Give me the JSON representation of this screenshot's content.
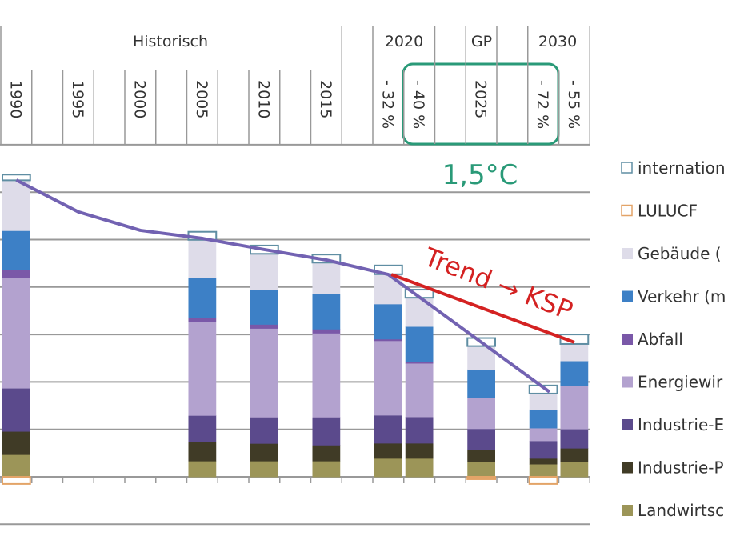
{
  "chart_data": {
    "type": "bar",
    "stacked": true,
    "title": "",
    "xlabel": "",
    "ylabel": "",
    "ylim": [
      -200,
      1400
    ],
    "grid": true,
    "legend_position": "right",
    "header_groups": [
      "Historisch",
      "2020",
      "GP",
      "2030"
    ],
    "slots": [
      "1990",
      "",
      "1995",
      "",
      "2000",
      "",
      "2005",
      "",
      "2010",
      "",
      "2015",
      "",
      "- 32 %",
      "- 40 %",
      "",
      "2025",
      "",
      "- 72 %",
      "- 55 %"
    ],
    "series": [
      {
        "name": "Landwirtsc",
        "color": "#9c9558",
        "outline": false
      },
      {
        "name": "Industrie-P",
        "color": "#403b26",
        "outline": false
      },
      {
        "name": "Industrie-E",
        "color": "#5b4a8c",
        "outline": false
      },
      {
        "name": "Energiewir",
        "color": "#b3a2cf",
        "outline": false
      },
      {
        "name": "Abfall",
        "color": "#7a58a8",
        "outline": false
      },
      {
        "name": "Verkehr (m",
        "color": "#3d80c6",
        "outline": false
      },
      {
        "name": "Gebäude (",
        "color": "#dedce9",
        "outline": false
      },
      {
        "name": "internation",
        "color": "#5f8ea3",
        "outline": true
      },
      {
        "name": "LULUCF",
        "color": "#e3a468",
        "outline": true
      }
    ],
    "legend_order": [
      "internation",
      "LULUCF",
      "Gebäude (",
      "Verkehr (m",
      "Abfall",
      "Energiewir",
      "Industrie-E",
      "Industrie-P",
      "Landwirtsc"
    ],
    "bars": [
      {
        "slot": 0,
        "values": [
          94,
          98,
          182,
          465,
          34,
          165,
          212,
          24,
          -30
        ]
      },
      {
        "slot": 6,
        "values": [
          67,
          81,
          111,
          395,
          17,
          169,
          159,
          34,
          0
        ]
      },
      {
        "slot": 8,
        "values": [
          67,
          74,
          111,
          374,
          17,
          145,
          152,
          35,
          0
        ]
      },
      {
        "slot": 10,
        "values": [
          67,
          67,
          118,
          354,
          17,
          148,
          132,
          34,
          0
        ]
      },
      {
        "slot": 12,
        "values": [
          78,
          64,
          118,
          314,
          7,
          148,
          125,
          37,
          0
        ]
      },
      {
        "slot": 13,
        "values": [
          78,
          64,
          111,
          226,
          7,
          148,
          121,
          34,
          0
        ]
      },
      {
        "slot": 15,
        "values": [
          64,
          51,
          88,
          132,
          0,
          118,
          98,
          34,
          -10
        ]
      },
      {
        "slot": 17,
        "values": [
          54,
          24,
          74,
          54,
          0,
          78,
          67,
          34,
          -30
        ]
      },
      {
        "slot": 18,
        "values": [
          64,
          57,
          81,
          182,
          0,
          105,
          71,
          40,
          0
        ]
      }
    ],
    "lines": [
      {
        "name": "path-1.5C",
        "color": "#7262b2",
        "points": [
          [
            0,
            1251
          ],
          [
            2,
            1117
          ],
          [
            4,
            1039
          ],
          [
            6,
            1005
          ],
          [
            8,
            958
          ],
          [
            10,
            914
          ],
          [
            12,
            853
          ],
          [
            17.2,
            358
          ]
        ]
      },
      {
        "name": "trend-ksp",
        "color": "#d42222",
        "points": [
          [
            12.1,
            853
          ],
          [
            18,
            567
          ]
        ]
      }
    ],
    "annotations": {
      "target": "1,5°C",
      "target_color": "#2a9a78",
      "trend": "Trend → KSP",
      "trend_color": "#d42222"
    }
  }
}
